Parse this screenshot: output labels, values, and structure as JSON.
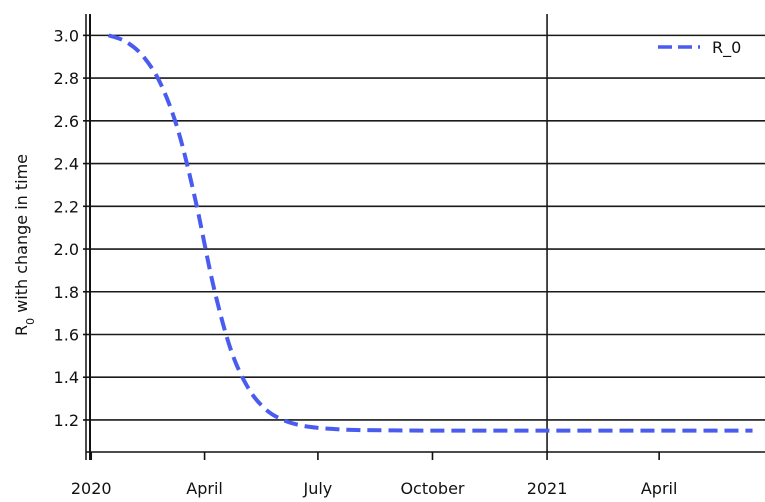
{
  "chart_data": {
    "type": "line",
    "title": "",
    "xlabel": "",
    "ylabel": "R",
    "ylabel_subscript": "0",
    "ylabel_suffix": " with change in time",
    "x_ticks": [
      "2020",
      "April",
      "July",
      "October",
      "2021",
      "April"
    ],
    "x_tick_dates": [
      "2020-01-01",
      "2020-04-01",
      "2020-07-01",
      "2020-10-01",
      "2021-01-01",
      "2021-04-01"
    ],
    "xlim": [
      "2019-12-31",
      "2021-06-25"
    ],
    "y_ticks": [
      "1.2",
      "1.4",
      "1.6",
      "1.8",
      "2.0",
      "2.2",
      "2.4",
      "2.6",
      "2.8",
      "3.0"
    ],
    "ylim": [
      1.05,
      3.1
    ],
    "grid": {
      "horizontal": true,
      "vertical_at": [
        "2021"
      ]
    },
    "legend": {
      "position": "top-right"
    },
    "series": [
      {
        "name": "R_0",
        "color": "#4a5cf0",
        "line_style": "dashed",
        "points": [
          {
            "x": "2020-01-15",
            "y": 3.0
          },
          {
            "x": "2020-01-29",
            "y": 2.97
          },
          {
            "x": "2020-02-12",
            "y": 2.9
          },
          {
            "x": "2020-02-26",
            "y": 2.77
          },
          {
            "x": "2020-03-11",
            "y": 2.55
          },
          {
            "x": "2020-03-25",
            "y": 2.22
          },
          {
            "x": "2020-04-08",
            "y": 1.83
          },
          {
            "x": "2020-04-22",
            "y": 1.53
          },
          {
            "x": "2020-05-06",
            "y": 1.35
          },
          {
            "x": "2020-05-20",
            "y": 1.25
          },
          {
            "x": "2020-06-03",
            "y": 1.2
          },
          {
            "x": "2020-06-17",
            "y": 1.175
          },
          {
            "x": "2020-07-01",
            "y": 1.163
          },
          {
            "x": "2020-07-15",
            "y": 1.157
          },
          {
            "x": "2020-08-01",
            "y": 1.153
          },
          {
            "x": "2020-09-01",
            "y": 1.151
          },
          {
            "x": "2020-10-01",
            "y": 1.15
          },
          {
            "x": "2021-01-01",
            "y": 1.15
          },
          {
            "x": "2021-04-01",
            "y": 1.15
          },
          {
            "x": "2021-06-15",
            "y": 1.15
          }
        ]
      }
    ]
  }
}
